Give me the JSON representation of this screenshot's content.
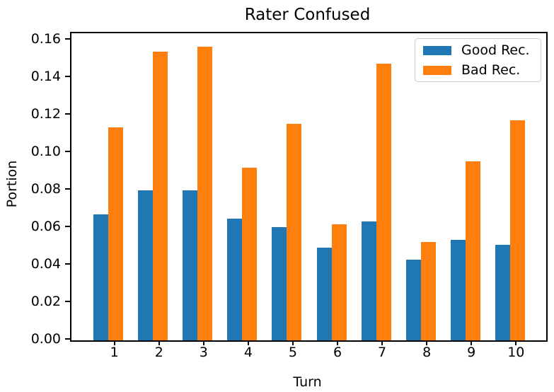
{
  "chart_data": {
    "type": "bar",
    "title": "Rater Confused",
    "xlabel": "Turn",
    "ylabel": "Portion",
    "categories": [
      "1",
      "2",
      "3",
      "4",
      "5",
      "6",
      "7",
      "8",
      "9",
      "10"
    ],
    "series": [
      {
        "name": "Good Rec.",
        "color": "#1f77b4",
        "values": [
          0.067,
          0.08,
          0.08,
          0.065,
          0.0605,
          0.0495,
          0.0635,
          0.043,
          0.0535,
          0.051
        ]
      },
      {
        "name": "Bad Rec.",
        "color": "#ff7f0e",
        "values": [
          0.1135,
          0.154,
          0.1565,
          0.092,
          0.1155,
          0.062,
          0.1475,
          0.0525,
          0.0955,
          0.1175
        ]
      }
    ],
    "ylim": [
      0,
      0.1638
    ],
    "yticks": [
      "0.00",
      "0.02",
      "0.04",
      "0.06",
      "0.08",
      "0.10",
      "0.12",
      "0.14",
      "0.16"
    ],
    "legend_position": "upper right",
    "grid": false,
    "spine_color": "#000000",
    "background_color": "#ffffff"
  }
}
